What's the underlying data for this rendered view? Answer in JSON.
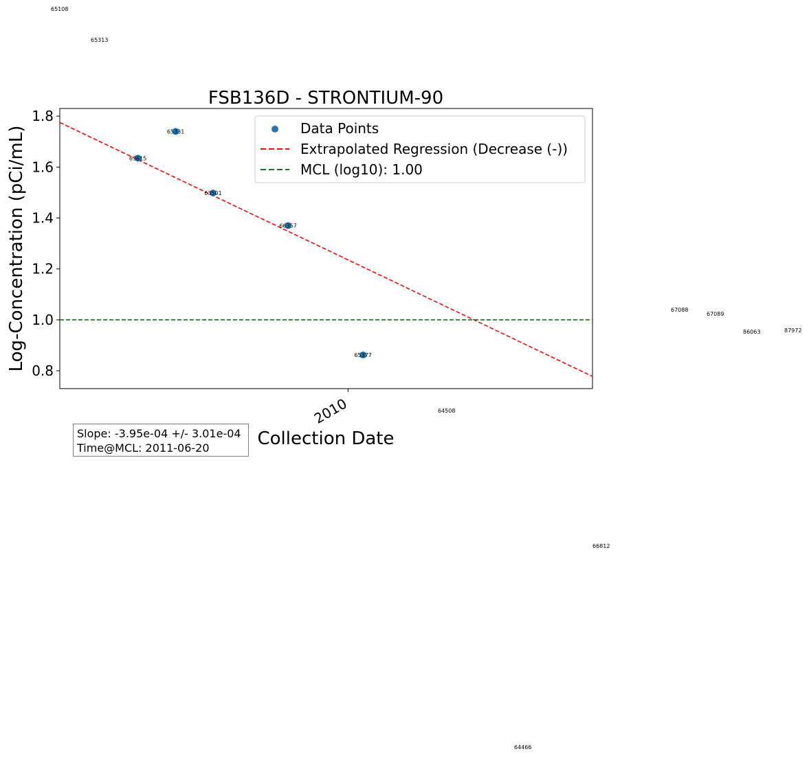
{
  "chart_data": {
    "type": "scatter",
    "title": "FSB136D - STRONTIUM-90",
    "xlabel": "Collection Date",
    "ylabel": "Log-Concentration (pCi/mL)",
    "xlim": [
      "2006-02-28",
      "2013-04-05"
    ],
    "ylim": [
      0.73,
      1.83
    ],
    "y_ticks": [
      0.8,
      1.0,
      1.2,
      1.4,
      1.6,
      1.8
    ],
    "y_tick_labels": [
      "0.8",
      "1.0",
      "1.2",
      "1.4",
      "1.6",
      "1.8"
    ],
    "x_ticks": [
      "2010-01-01"
    ],
    "x_tick_labels": [
      "2010"
    ],
    "grid": false,
    "legend_position": "top-right",
    "series": [
      {
        "name": "Data Points",
        "color": "#1f77b4",
        "marker": "circle",
        "points": [
          {
            "x": "2007-03-15",
            "y": 1.635,
            "label": "63615"
          },
          {
            "x": "2007-09-15",
            "y": 1.74,
            "label": "65331"
          },
          {
            "x": "2008-03-15",
            "y": 1.498,
            "label": "63501"
          },
          {
            "x": "2009-03-15",
            "y": 1.37,
            "label": "66357"
          },
          {
            "x": "2010-03-15",
            "y": 0.862,
            "label": "65377"
          }
        ]
      },
      {
        "name": "Extrapolated Regression (Decrease (-))",
        "color": "#ff0000",
        "style": "dashed",
        "points": [
          {
            "x": "2006-02-28",
            "y": 1.775
          },
          {
            "x": "2013-04-05",
            "y": 0.778
          }
        ]
      },
      {
        "name": "MCL (log10): 1.00",
        "color": "#008000",
        "style": "dashed",
        "y": 1.0
      }
    ],
    "stray_labels": [
      "65108",
      "65313",
      "67088",
      "67089",
      "86063",
      "87972",
      "64508",
      "66812",
      "64466"
    ],
    "stats": {
      "slope": "Slope: -3.95e-04 +/- 3.01e-04",
      "time_at_mcl": "Time@MCL: 2011-06-20"
    }
  }
}
